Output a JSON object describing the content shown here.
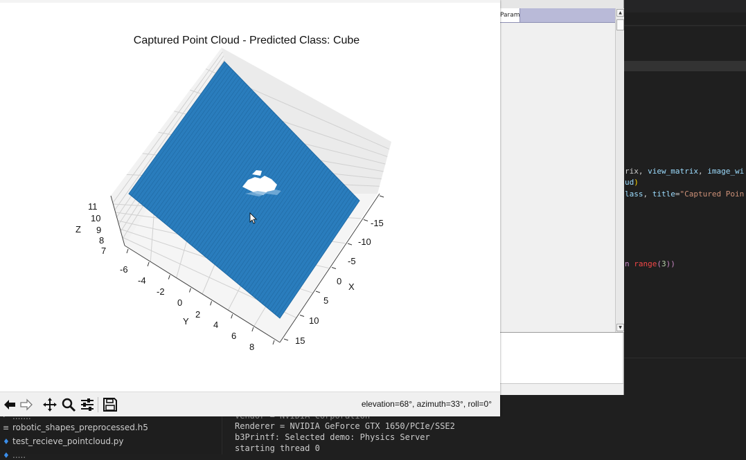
{
  "figure": {
    "title": "Captured Point Cloud - Predicted Class: Cube",
    "status": "elevation=68°, azimuth=33°, roll=0°",
    "axes": {
      "x_label": "X",
      "y_label": "Y",
      "z_label": "Z",
      "x_ticks": [
        "-15",
        "-10",
        "-5",
        "0",
        "5",
        "10",
        "15"
      ],
      "y_ticks": [
        "-6",
        "-4",
        "-2",
        "0",
        "2",
        "4",
        "6",
        "8"
      ],
      "z_ticks": [
        "11",
        "10",
        "9",
        "8",
        "7"
      ]
    },
    "point_color": "#1f77b4"
  },
  "toolbar": {
    "back_icon": "left-arrow-icon",
    "forward_icon": "right-arrow-icon",
    "pan_icon": "move-icon",
    "zoom_icon": "magnifier-icon",
    "configure_icon": "sliders-icon",
    "save_icon": "floppy-icon"
  },
  "params_window": {
    "tab_label": "Params"
  },
  "editor": {
    "lines": [
      {
        "parts": [
          {
            "t": "rix, ",
            "c": "c-white"
          },
          {
            "t": "view_matrix",
            "c": "c-cyan"
          },
          {
            "t": ", ",
            "c": "c-white"
          },
          {
            "t": "image_wi",
            "c": "c-cyan"
          }
        ]
      },
      {
        "parts": [
          {
            "t": "ud",
            "c": "c-cyan"
          },
          {
            "t": ")",
            "c": "c-yellow"
          }
        ]
      },
      {
        "parts": [
          {
            "t": "lass",
            "c": "c-cyan"
          },
          {
            "t": ", ",
            "c": "c-white"
          },
          {
            "t": "title",
            "c": "c-cyan"
          },
          {
            "t": "=",
            "c": "c-white"
          },
          {
            "t": "\"Captured Poin",
            "c": "c-orange"
          }
        ]
      }
    ],
    "range_line": [
      {
        "t": "n ",
        "c": "c-pink"
      },
      {
        "t": "range",
        "c": "c-red"
      },
      {
        "t": "(",
        "c": "c-pink"
      },
      {
        "t": "3",
        "c": "c-num"
      },
      {
        "t": "))",
        "c": "c-pink"
      }
    ]
  },
  "explorer": {
    "files": [
      {
        "icon": "≡",
        "name": "robotic_shapes_preprocessed.h5"
      },
      {
        "icon": "♦",
        "name": "test_recieve_pointcloud.py"
      }
    ]
  },
  "terminal": {
    "lines": [
      "Vendor = NVIDIA Corporation",
      "Renderer = NVIDIA GeForce GTX 1650/PCIe/SSE2",
      "b3Printf: Selected demo: Physics Server",
      "starting thread 0"
    ]
  }
}
